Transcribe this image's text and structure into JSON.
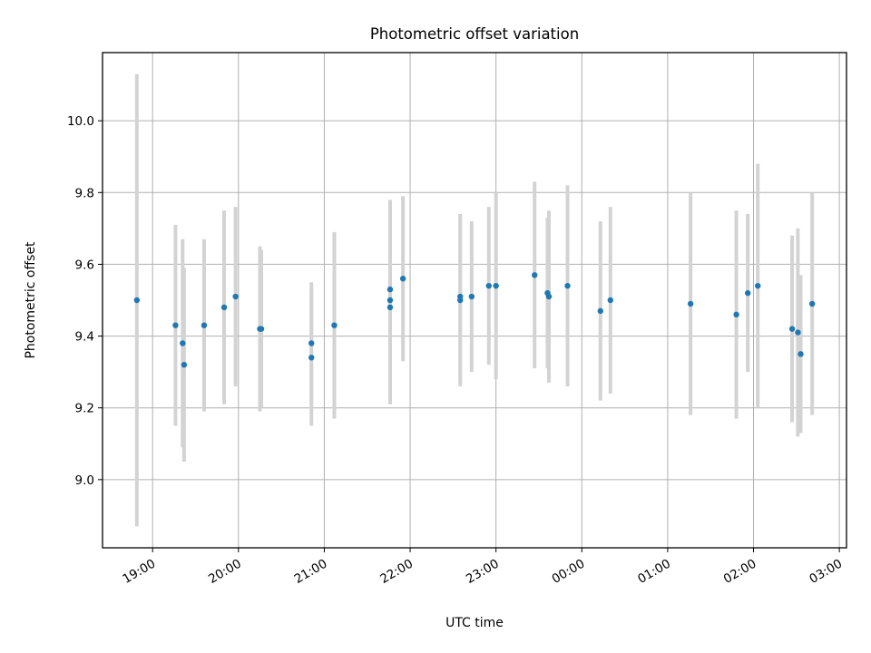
{
  "chart_data": {
    "type": "scatter",
    "title": "Photometric offset variation",
    "xlabel": "UTC time",
    "ylabel": "Photometric offset",
    "xlim": [
      "2023-01-01T18:25",
      "2023-01-02T03:05"
    ],
    "ylim": [
      8.81,
      10.19
    ],
    "x_ticks": [
      {
        "time": "2023-01-01T19:00",
        "label": "19:00"
      },
      {
        "time": "2023-01-01T20:00",
        "label": "20:00"
      },
      {
        "time": "2023-01-01T21:00",
        "label": "21:00"
      },
      {
        "time": "2023-01-01T22:00",
        "label": "22:00"
      },
      {
        "time": "2023-01-01T23:00",
        "label": "23:00"
      },
      {
        "time": "2023-01-02T00:00",
        "label": "00:00"
      },
      {
        "time": "2023-01-02T01:00",
        "label": "01:00"
      },
      {
        "time": "2023-01-02T02:00",
        "label": "02:00"
      },
      {
        "time": "2023-01-02T03:00",
        "label": "03:00"
      }
    ],
    "y_ticks": [
      {
        "value": 9.0,
        "label": "9.0"
      },
      {
        "value": 9.2,
        "label": "9.2"
      },
      {
        "value": 9.4,
        "label": "9.4"
      },
      {
        "value": 9.6,
        "label": "9.6"
      },
      {
        "value": 9.8,
        "label": "9.8"
      },
      {
        "value": 10.0,
        "label": "10.0"
      }
    ],
    "grid": true,
    "colors": {
      "points": "#1f77b4",
      "error_bars": "#d3d3d3",
      "grid": "#b0b0b0"
    },
    "points": [
      {
        "x": "2023-01-01T18:49",
        "y": 9.5,
        "err": 0.63
      },
      {
        "x": "2023-01-01T19:16",
        "y": 9.43,
        "err": 0.28
      },
      {
        "x": "2023-01-01T19:21",
        "y": 9.38,
        "err": 0.29
      },
      {
        "x": "2023-01-01T19:22",
        "y": 9.32,
        "err": 0.27
      },
      {
        "x": "2023-01-01T19:36",
        "y": 9.43,
        "err": 0.24
      },
      {
        "x": "2023-01-01T19:50",
        "y": 9.48,
        "err": 0.27
      },
      {
        "x": "2023-01-01T19:58",
        "y": 9.51,
        "err": 0.25
      },
      {
        "x": "2023-01-01T20:15",
        "y": 9.42,
        "err": 0.23
      },
      {
        "x": "2023-01-01T20:16",
        "y": 9.42,
        "err": 0.22
      },
      {
        "x": "2023-01-01T20:51",
        "y": 9.38,
        "err": 0.17
      },
      {
        "x": "2023-01-01T20:51",
        "y": 9.34,
        "err": 0.19
      },
      {
        "x": "2023-01-01T21:07",
        "y": 9.43,
        "err": 0.26
      },
      {
        "x": "2023-01-01T21:46",
        "y": 9.53,
        "err": 0.23
      },
      {
        "x": "2023-01-01T21:46",
        "y": 9.5,
        "err": 0.28
      },
      {
        "x": "2023-01-01T21:46",
        "y": 9.48,
        "err": 0.27
      },
      {
        "x": "2023-01-01T21:55",
        "y": 9.56,
        "err": 0.23
      },
      {
        "x": "2023-01-01T22:35",
        "y": 9.51,
        "err": 0.23
      },
      {
        "x": "2023-01-01T22:35",
        "y": 9.5,
        "err": 0.24
      },
      {
        "x": "2023-01-01T22:43",
        "y": 9.51,
        "err": 0.21
      },
      {
        "x": "2023-01-01T22:55",
        "y": 9.54,
        "err": 0.22
      },
      {
        "x": "2023-01-01T23:00",
        "y": 9.54,
        "err": 0.26
      },
      {
        "x": "2023-01-01T23:27",
        "y": 9.57,
        "err": 0.26
      },
      {
        "x": "2023-01-01T23:36",
        "y": 9.52,
        "err": 0.21
      },
      {
        "x": "2023-01-01T23:37",
        "y": 9.51,
        "err": 0.24
      },
      {
        "x": "2023-01-01T23:50",
        "y": 9.54,
        "err": 0.28
      },
      {
        "x": "2023-01-02T00:13",
        "y": 9.47,
        "err": 0.25
      },
      {
        "x": "2023-01-02T00:20",
        "y": 9.5,
        "err": 0.26
      },
      {
        "x": "2023-01-02T01:16",
        "y": 9.49,
        "err": 0.31
      },
      {
        "x": "2023-01-02T01:48",
        "y": 9.46,
        "err": 0.29
      },
      {
        "x": "2023-01-02T01:56",
        "y": 9.52,
        "err": 0.22
      },
      {
        "x": "2023-01-02T02:03",
        "y": 9.54,
        "err": 0.34
      },
      {
        "x": "2023-01-02T02:27",
        "y": 9.42,
        "err": 0.26
      },
      {
        "x": "2023-01-02T02:31",
        "y": 9.41,
        "err": 0.29
      },
      {
        "x": "2023-01-02T02:33",
        "y": 9.35,
        "err": 0.22
      },
      {
        "x": "2023-01-02T02:41",
        "y": 9.49,
        "err": 0.31
      }
    ]
  }
}
